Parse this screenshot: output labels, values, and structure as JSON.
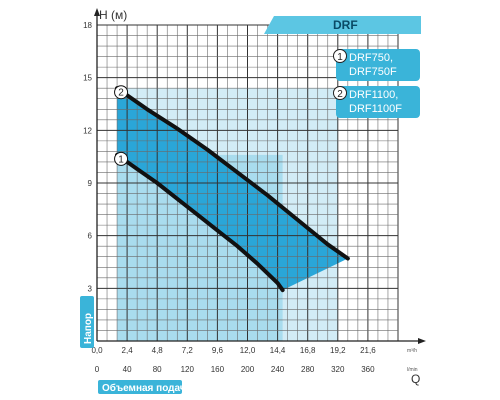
{
  "chart_data": {
    "type": "line",
    "title": "DRF",
    "ylabel": "H (м)",
    "ylabel_side": "Напор",
    "xlabel": "Q",
    "xlabel_bottom": "Объемная подача",
    "x_unit_top": "m³/h",
    "x_unit_bottom": "l/min",
    "xlim": [
      0,
      24
    ],
    "ylim": [
      0,
      18
    ],
    "x_ticks_top": [
      "0,0",
      "2,4",
      "4,8",
      "7,2",
      "9,6",
      "12,0",
      "14,4",
      "16,8",
      "19,2",
      "21,6"
    ],
    "x_ticks_bottom": [
      "0",
      "40",
      "80",
      "120",
      "160",
      "200",
      "240",
      "280",
      "320",
      "360"
    ],
    "y_ticks": [
      "0",
      "3",
      "6",
      "9",
      "12",
      "15",
      "18"
    ],
    "grid": true,
    "legend_position": "top-right",
    "series": [
      {
        "marker": "1",
        "name": "DRF750,\nDRF750F",
        "name_lines": [
          "DRF750,",
          "DRF750F"
        ],
        "x": [
          1.6,
          3.2,
          4.8,
          6.4,
          8.0,
          9.6,
          11.2,
          12.8,
          14.4,
          14.8
        ],
        "y": [
          10.6,
          9.8,
          9.0,
          8.1,
          7.2,
          6.3,
          5.4,
          4.4,
          3.3,
          2.9
        ]
      },
      {
        "marker": "2",
        "name": "DRF1100,\nDRF1100F",
        "name_lines": [
          "DRF1100,",
          "DRF1100F"
        ],
        "x": [
          1.6,
          4.0,
          6.4,
          8.8,
          11.2,
          13.6,
          16.0,
          18.4,
          20.0
        ],
        "y": [
          14.4,
          13.2,
          12.1,
          10.9,
          9.6,
          8.3,
          6.9,
          5.5,
          4.7
        ]
      }
    ]
  }
}
